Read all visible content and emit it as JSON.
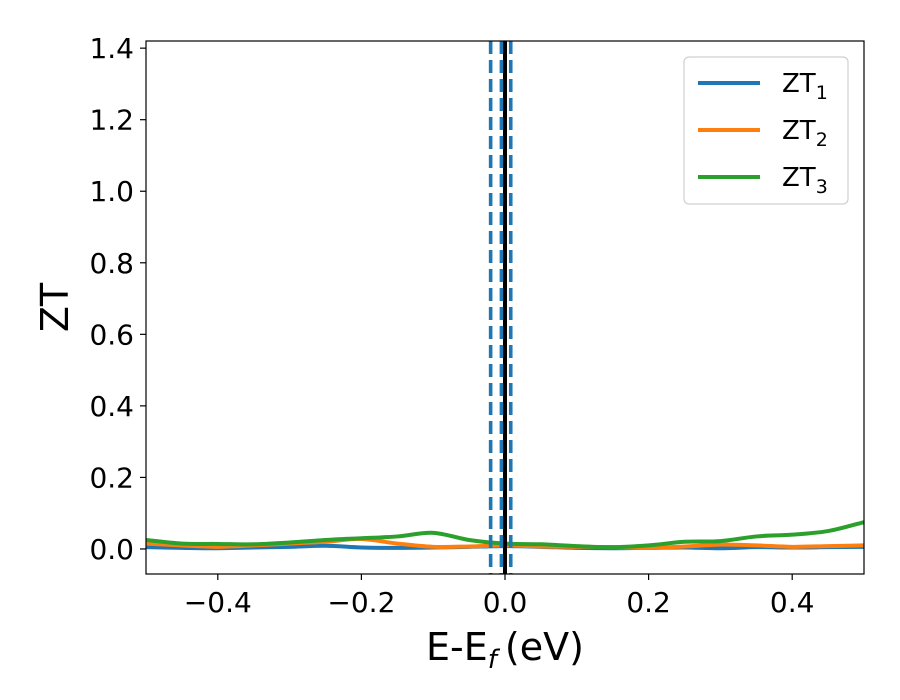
{
  "chart_data": {
    "type": "line",
    "xlabel": "E-E",
    "xlabel_subscript": "f",
    "xlabel_unit": "(eV)",
    "ylabel": "ZT",
    "xlim": [
      -0.5,
      0.5
    ],
    "ylim": [
      -0.07,
      1.42
    ],
    "xticks": [
      -0.4,
      -0.2,
      0.0,
      0.2,
      0.4
    ],
    "xtick_labels": [
      "−0.4",
      "−0.2",
      "0.0",
      "0.2",
      "0.4"
    ],
    "yticks": [
      0.0,
      0.2,
      0.4,
      0.6,
      0.8,
      1.0,
      1.2,
      1.4
    ],
    "ytick_labels": [
      "0.0",
      "0.2",
      "0.4",
      "0.6",
      "0.8",
      "1.0",
      "1.2",
      "1.4"
    ],
    "grid": false,
    "legend_position": "top-right",
    "vertical_lines": [
      {
        "x": 0.0,
        "style": "solid",
        "color": "#000000"
      },
      {
        "x": -0.02,
        "style": "dashed",
        "color": "#1f77b4"
      },
      {
        "x": -0.005,
        "style": "dashed",
        "color": "#1f77b4"
      },
      {
        "x": 0.008,
        "style": "dashed",
        "color": "#1f77b4"
      }
    ],
    "series": [
      {
        "name": "ZT",
        "name_subscript": "1",
        "color": "#1f77b4",
        "x": [
          -0.5,
          -0.45,
          -0.4,
          -0.35,
          -0.3,
          -0.25,
          -0.2,
          -0.15,
          -0.1,
          -0.05,
          0.0,
          0.05,
          0.1,
          0.15,
          0.2,
          0.25,
          0.3,
          0.35,
          0.4,
          0.45,
          0.5
        ],
        "y": [
          0.005,
          0.003,
          0.002,
          0.004,
          0.006,
          0.009,
          0.004,
          0.003,
          0.004,
          0.006,
          0.008,
          0.006,
          0.003,
          0.002,
          0.003,
          0.004,
          0.002,
          0.005,
          0.004,
          0.005,
          0.006
        ]
      },
      {
        "name": "ZT",
        "name_subscript": "2",
        "color": "#ff7f0e",
        "x": [
          -0.5,
          -0.45,
          -0.4,
          -0.35,
          -0.3,
          -0.25,
          -0.2,
          -0.15,
          -0.1,
          -0.05,
          0.0,
          0.05,
          0.1,
          0.15,
          0.2,
          0.25,
          0.3,
          0.35,
          0.4,
          0.45,
          0.5
        ],
        "y": [
          0.015,
          0.01,
          0.006,
          0.01,
          0.015,
          0.02,
          0.028,
          0.015,
          0.006,
          0.007,
          0.01,
          0.007,
          0.006,
          0.005,
          0.003,
          0.007,
          0.012,
          0.01,
          0.006,
          0.008,
          0.01
        ]
      },
      {
        "name": "ZT",
        "name_subscript": "3",
        "color": "#2ca02c",
        "x": [
          -0.5,
          -0.45,
          -0.4,
          -0.35,
          -0.3,
          -0.25,
          -0.2,
          -0.15,
          -0.1,
          -0.05,
          0.0,
          0.05,
          0.1,
          0.15,
          0.2,
          0.25,
          0.3,
          0.35,
          0.4,
          0.45,
          0.5
        ],
        "y": [
          0.025,
          0.015,
          0.014,
          0.013,
          0.018,
          0.025,
          0.03,
          0.035,
          0.045,
          0.025,
          0.015,
          0.013,
          0.008,
          0.005,
          0.01,
          0.02,
          0.022,
          0.035,
          0.04,
          0.05,
          0.075
        ]
      }
    ]
  }
}
